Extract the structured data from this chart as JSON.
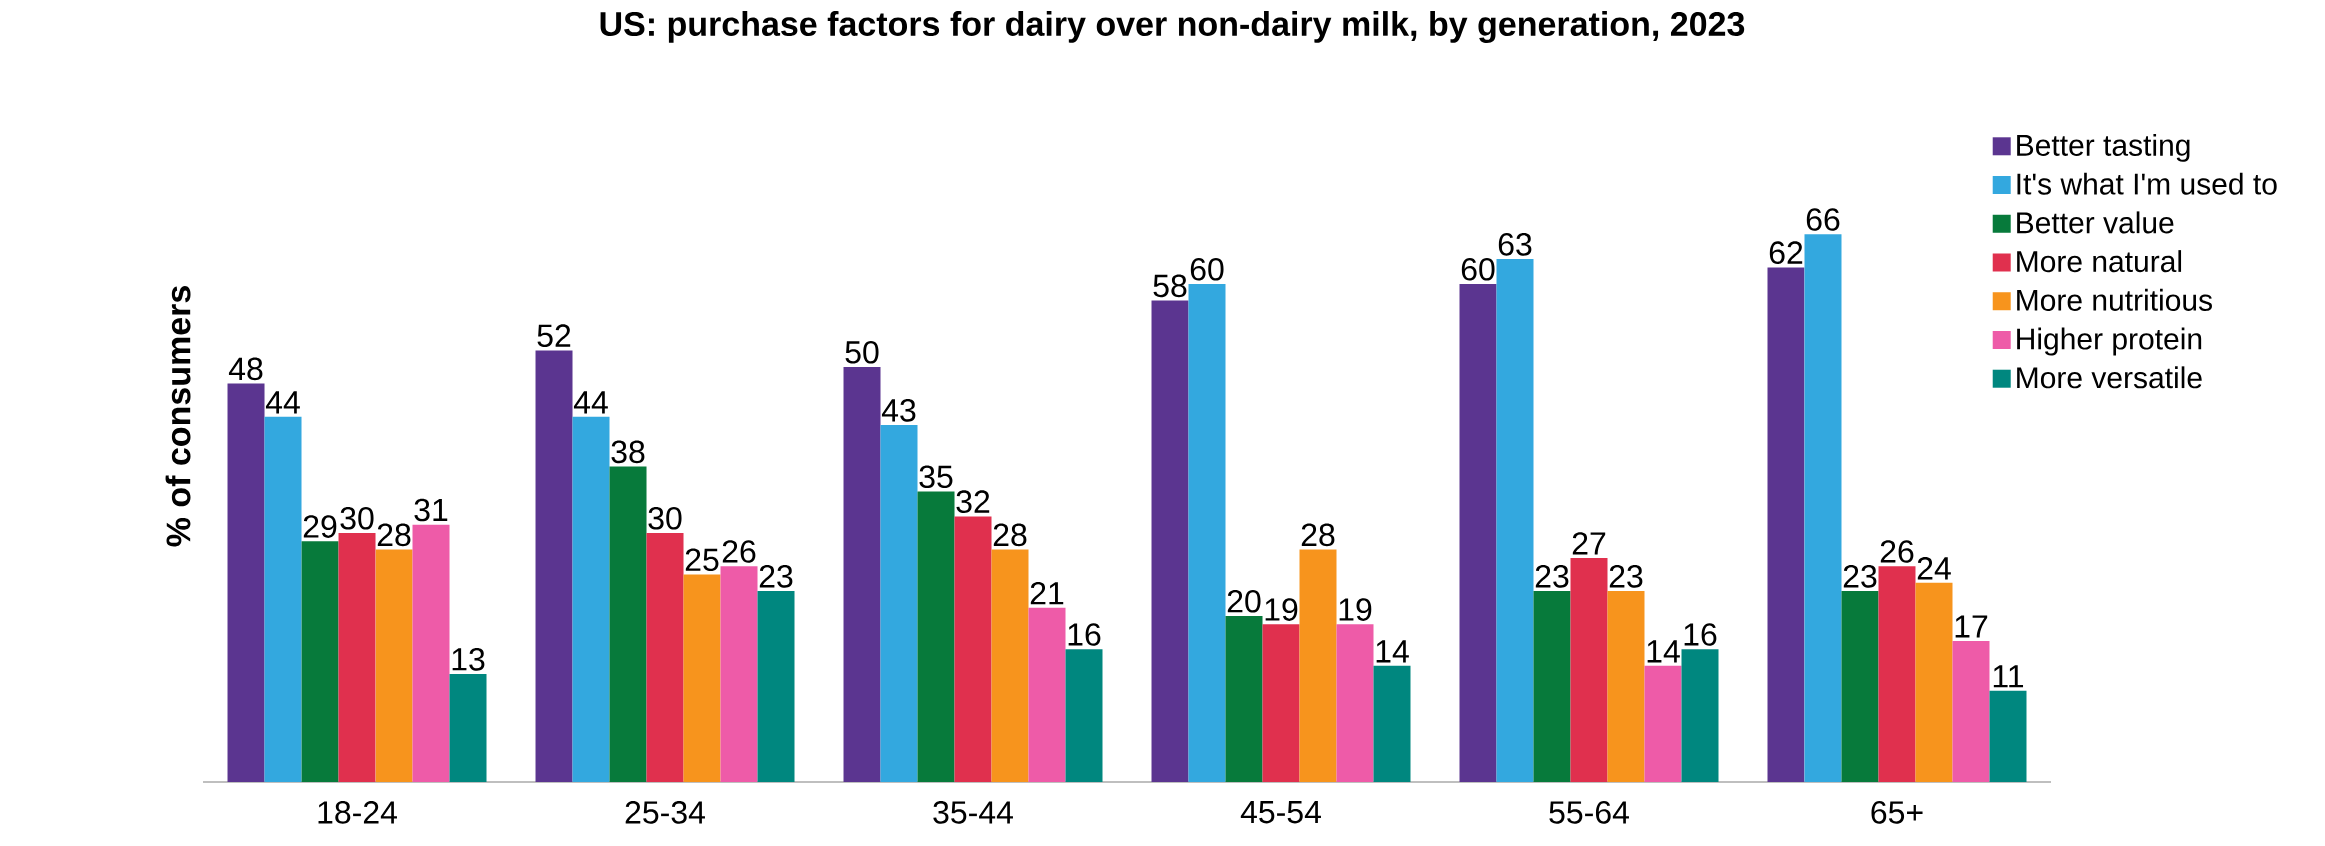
{
  "chart_data": {
    "type": "bar",
    "title": "US: purchase factors for dairy over non-dairy milk, by generation, 2023",
    "ylabel": "% of consumers",
    "categories": [
      "18-24",
      "25-34",
      "35-44",
      "45-54",
      "55-64",
      "65+"
    ],
    "series": [
      {
        "name": "Better tasting",
        "color": "#5b3590",
        "values": [
          48,
          52,
          50,
          58,
          60,
          62
        ]
      },
      {
        "name": "It's what I'm used to",
        "color": "#33a8df",
        "values": [
          44,
          44,
          43,
          60,
          63,
          66
        ]
      },
      {
        "name": "Better value",
        "color": "#077a3b",
        "values": [
          29,
          38,
          35,
          20,
          23,
          23
        ]
      },
      {
        "name": "More natural",
        "color": "#e0304e",
        "values": [
          30,
          30,
          32,
          19,
          27,
          26
        ]
      },
      {
        "name": "More nutritious",
        "color": "#f7941d",
        "values": [
          28,
          25,
          28,
          28,
          23,
          24
        ]
      },
      {
        "name": "Higher protein",
        "color": "#ee5ba8",
        "values": [
          31,
          26,
          21,
          19,
          14,
          17
        ]
      },
      {
        "name": "More versatile",
        "color": "#00877f",
        "values": [
          13,
          23,
          16,
          14,
          16,
          11
        ]
      }
    ],
    "data_labels": true,
    "legend": "top right"
  }
}
